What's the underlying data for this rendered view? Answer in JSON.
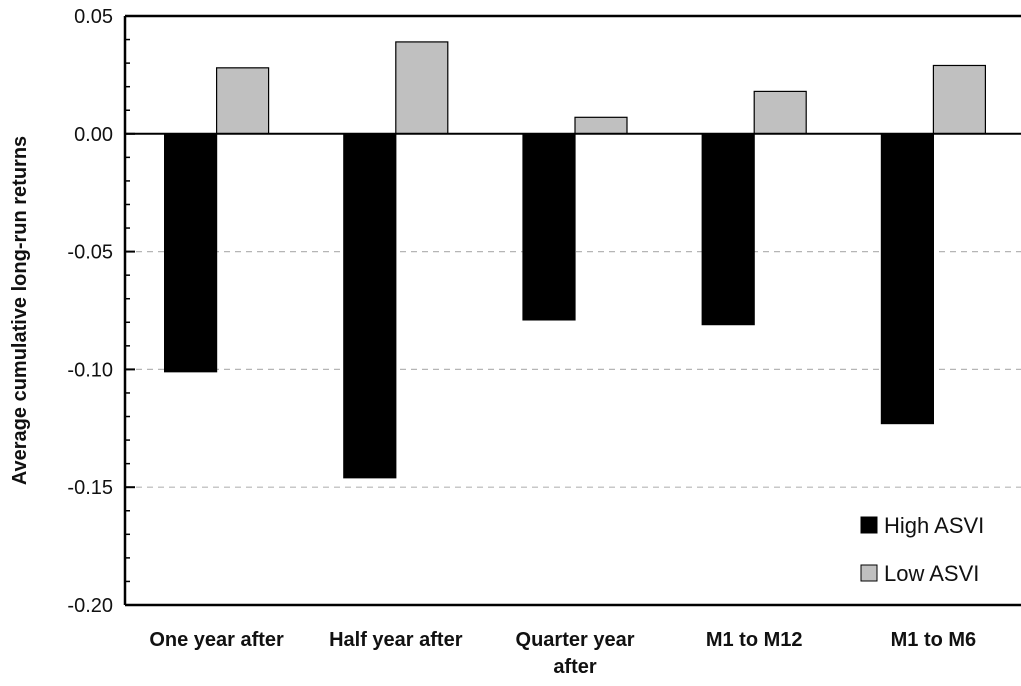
{
  "chart_data": {
    "type": "bar",
    "title": "",
    "xlabel": "",
    "ylabel": "Average cumulative long-run returns",
    "ylim": [
      -0.2,
      0.05
    ],
    "yticks": [
      "0.05",
      "0.00",
      "-0.05",
      "-0.10",
      "-0.15",
      "-0.20"
    ],
    "ytick_values": [
      0.05,
      0.0,
      -0.05,
      -0.1,
      -0.15,
      -0.2
    ],
    "dashed_gridlines_at": [
      -0.05,
      -0.1,
      -0.15
    ],
    "categories": [
      [
        "One year after"
      ],
      [
        "Half year after"
      ],
      [
        "Quarter year",
        "after"
      ],
      [
        "M1 to M12"
      ],
      [
        "M1 to M6"
      ]
    ],
    "series": [
      {
        "name": "High ASVI",
        "color": "#000000",
        "values": [
          -0.101,
          -0.146,
          -0.079,
          -0.081,
          -0.123
        ]
      },
      {
        "name": "Low ASVI",
        "color": "#c0c0c0",
        "values": [
          0.028,
          0.039,
          0.007,
          0.018,
          0.029
        ]
      }
    ],
    "legend_position": "bottom-right"
  }
}
